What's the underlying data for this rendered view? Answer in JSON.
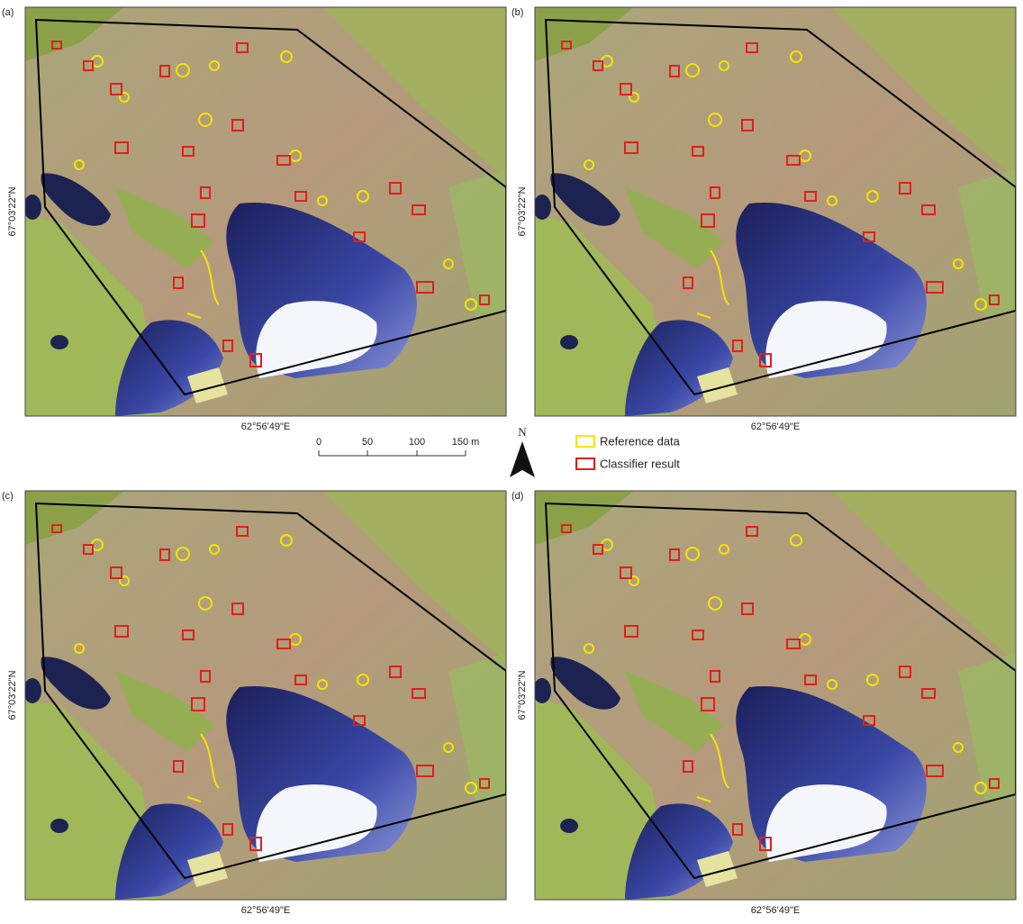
{
  "panels": [
    {
      "label": "(a)",
      "lon_label": "62°56'49\"E",
      "lat_label": "67°03'22\"N"
    },
    {
      "label": "(b)",
      "lon_label": "62°56'49\"E",
      "lat_label": "67°03'22\"N"
    },
    {
      "label": "(c)",
      "lon_label": "62°56'49\"E",
      "lat_label": "67°03'22\"N"
    },
    {
      "label": "(d)",
      "lon_label": "62°56'49\"E",
      "lat_label": "67°03'22\"N"
    }
  ],
  "scale_bar": {
    "labels": [
      "0",
      "50",
      "100",
      "150 m"
    ]
  },
  "north_arrow": {
    "label": "N"
  },
  "legend": {
    "items": [
      {
        "label": "Reference data",
        "color": "#f5e400"
      },
      {
        "label": "Classifier result",
        "color": "#e0201a"
      }
    ]
  }
}
